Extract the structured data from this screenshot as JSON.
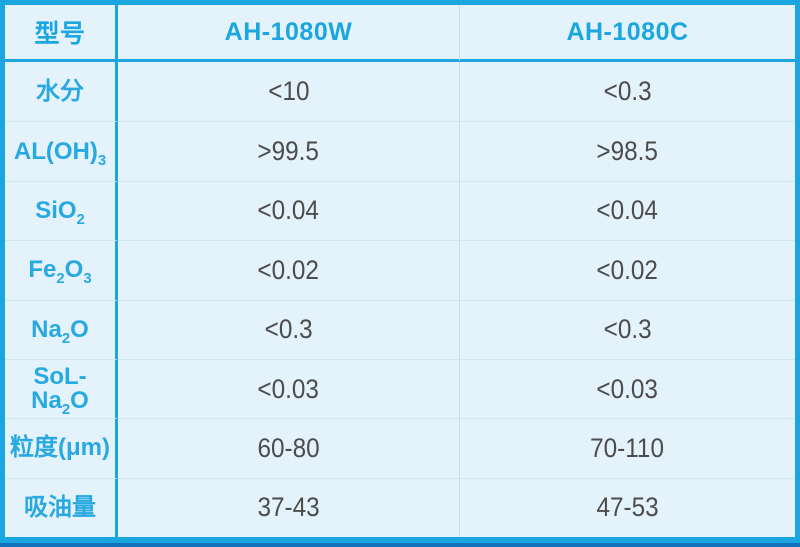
{
  "accent_colors": {
    "cyan_frame": "#1ba6e0",
    "dark_blue_strip": "#1173b9",
    "cell_background": "#e3f2fb",
    "faint_grid": "#cfe6f2",
    "label_text": "#29a9e1",
    "value_text": "#4c4c4c"
  },
  "table": {
    "header": {
      "col0": "型号",
      "col1": "AH-1080W",
      "col2": "AH-1080C"
    },
    "rows": [
      {
        "label": [
          {
            "t": "水分",
            "sub": false
          }
        ],
        "values": [
          "<10",
          "<0.3"
        ]
      },
      {
        "label": [
          {
            "t": "AL(OH)",
            "sub": false
          },
          {
            "t": "3",
            "sub": true
          }
        ],
        "values": [
          ">99.5",
          ">98.5"
        ]
      },
      {
        "label": [
          {
            "t": "SiO",
            "sub": false
          },
          {
            "t": "2",
            "sub": true
          }
        ],
        "values": [
          "<0.04",
          "<0.04"
        ]
      },
      {
        "label": [
          {
            "t": "Fe",
            "sub": false
          },
          {
            "t": "2",
            "sub": true
          },
          {
            "t": "O",
            "sub": false
          },
          {
            "t": "3",
            "sub": true
          }
        ],
        "values": [
          "<0.02",
          "<0.02"
        ]
      },
      {
        "label": [
          {
            "t": "Na",
            "sub": false
          },
          {
            "t": "2",
            "sub": true
          },
          {
            "t": "O",
            "sub": false
          }
        ],
        "values": [
          "<0.3",
          "<0.3"
        ]
      },
      {
        "label": [
          {
            "t": "SoL-Na",
            "sub": false
          },
          {
            "t": "2",
            "sub": true
          },
          {
            "t": "O",
            "sub": false
          }
        ],
        "values": [
          "<0.03",
          "<0.03"
        ]
      },
      {
        "label": [
          {
            "t": "粒度(μm)",
            "sub": false
          }
        ],
        "values": [
          "60-80",
          "70-110"
        ]
      },
      {
        "label": [
          {
            "t": "吸油量",
            "sub": false
          }
        ],
        "values": [
          "37-43",
          "47-53"
        ]
      }
    ]
  },
  "chart_data": {
    "type": "table",
    "title": "",
    "columns": [
      "型号",
      "AH-1080W",
      "AH-1080C"
    ],
    "rows": [
      [
        "水分",
        "<10",
        "<0.3"
      ],
      [
        "AL(OH)3",
        ">99.5",
        ">98.5"
      ],
      [
        "SiO2",
        "<0.04",
        "<0.04"
      ],
      [
        "Fe2O3",
        "<0.02",
        "<0.02"
      ],
      [
        "Na2O",
        "<0.3",
        "<0.3"
      ],
      [
        "SoL-Na2O",
        "<0.03",
        "<0.03"
      ],
      [
        "粒度(μm)",
        "60-80",
        "70-110"
      ],
      [
        "吸油量",
        "37-43",
        "47-53"
      ]
    ]
  }
}
